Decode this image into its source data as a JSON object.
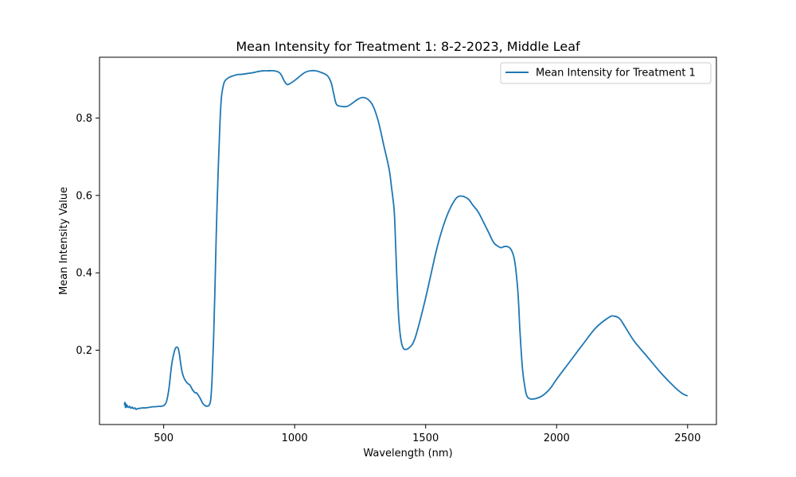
{
  "chart_data": {
    "type": "line",
    "title": "Mean Intensity for Treatment 1: 8-2-2023, Middle Leaf",
    "xlabel": "Wavelength (nm)",
    "ylabel": "Mean Intensity Value",
    "xlim": [
      255,
      2610
    ],
    "ylim": [
      0.008,
      0.957
    ],
    "xticks": [
      500,
      1000,
      1500,
      2000,
      2500
    ],
    "yticks": [
      0.2,
      0.4,
      0.6,
      0.8
    ],
    "xtick_labels": [
      "500",
      "1000",
      "1500",
      "2000",
      "2500"
    ],
    "ytick_labels": [
      "0.2",
      "0.4",
      "0.6",
      "0.8"
    ],
    "grid": false,
    "legend": {
      "position": "top-right",
      "entries": [
        "Mean Intensity for Treatment 1"
      ]
    },
    "series": [
      {
        "name": "Mean Intensity for Treatment 1",
        "color": "#1f77b4",
        "x": [
          350,
          352,
          354,
          356,
          358,
          360,
          365,
          370,
          375,
          380,
          385,
          390,
          395,
          400,
          410,
          420,
          430,
          440,
          450,
          460,
          470,
          480,
          490,
          500,
          505,
          510,
          515,
          520,
          525,
          530,
          535,
          540,
          545,
          550,
          555,
          560,
          565,
          570,
          575,
          580,
          590,
          600,
          610,
          620,
          625,
          630,
          640,
          645,
          650,
          660,
          670,
          675,
          680,
          685,
          690,
          695,
          700,
          705,
          710,
          715,
          720,
          725,
          730,
          735,
          740,
          745,
          750,
          760,
          770,
          780,
          800,
          820,
          840,
          860,
          880,
          900,
          920,
          940,
          950,
          960,
          970,
          980,
          1000,
          1020,
          1040,
          1060,
          1080,
          1100,
          1120,
          1130,
          1140,
          1150,
          1160,
          1180,
          1200,
          1220,
          1240,
          1260,
          1280,
          1300,
          1320,
          1340,
          1360,
          1370,
          1380,
          1385,
          1390,
          1395,
          1400,
          1405,
          1410,
          1415,
          1420,
          1430,
          1440,
          1450,
          1460,
          1470,
          1480,
          1500,
          1520,
          1540,
          1560,
          1580,
          1600,
          1620,
          1640,
          1660,
          1670,
          1680,
          1700,
          1720,
          1740,
          1760,
          1780,
          1790,
          1800,
          1810,
          1820,
          1830,
          1840,
          1850,
          1855,
          1860,
          1870,
          1880,
          1885,
          1890,
          1900,
          1910,
          1920,
          1940,
          1960,
          1980,
          2000,
          2050,
          2100,
          2150,
          2200,
          2220,
          2240,
          2260,
          2280,
          2300,
          2350,
          2400,
          2450,
          2480,
          2500
        ],
        "values": [
          0.058,
          0.065,
          0.052,
          0.061,
          0.053,
          0.058,
          0.052,
          0.055,
          0.05,
          0.053,
          0.049,
          0.051,
          0.047,
          0.049,
          0.05,
          0.051,
          0.051,
          0.052,
          0.053,
          0.054,
          0.054,
          0.055,
          0.055,
          0.057,
          0.06,
          0.066,
          0.08,
          0.1,
          0.13,
          0.16,
          0.18,
          0.195,
          0.205,
          0.208,
          0.205,
          0.19,
          0.165,
          0.145,
          0.133,
          0.125,
          0.115,
          0.11,
          0.098,
          0.09,
          0.09,
          0.086,
          0.075,
          0.068,
          0.062,
          0.056,
          0.056,
          0.06,
          0.075,
          0.13,
          0.22,
          0.34,
          0.48,
          0.6,
          0.7,
          0.79,
          0.85,
          0.875,
          0.89,
          0.897,
          0.9,
          0.903,
          0.905,
          0.908,
          0.91,
          0.912,
          0.913,
          0.915,
          0.917,
          0.92,
          0.922,
          0.922,
          0.922,
          0.918,
          0.91,
          0.896,
          0.887,
          0.888,
          0.897,
          0.908,
          0.918,
          0.922,
          0.922,
          0.918,
          0.912,
          0.905,
          0.89,
          0.86,
          0.835,
          0.83,
          0.83,
          0.838,
          0.848,
          0.853,
          0.848,
          0.83,
          0.79,
          0.73,
          0.67,
          0.62,
          0.56,
          0.48,
          0.39,
          0.31,
          0.26,
          0.23,
          0.213,
          0.205,
          0.202,
          0.203,
          0.208,
          0.216,
          0.232,
          0.255,
          0.28,
          0.335,
          0.395,
          0.455,
          0.505,
          0.545,
          0.575,
          0.595,
          0.598,
          0.592,
          0.585,
          0.575,
          0.558,
          0.532,
          0.505,
          0.478,
          0.467,
          0.465,
          0.468,
          0.468,
          0.465,
          0.455,
          0.43,
          0.37,
          0.32,
          0.25,
          0.15,
          0.1,
          0.085,
          0.078,
          0.074,
          0.074,
          0.075,
          0.08,
          0.09,
          0.105,
          0.125,
          0.17,
          0.215,
          0.258,
          0.285,
          0.288,
          0.282,
          0.262,
          0.24,
          0.22,
          0.18,
          0.14,
          0.105,
          0.088,
          0.082
        ]
      }
    ]
  }
}
